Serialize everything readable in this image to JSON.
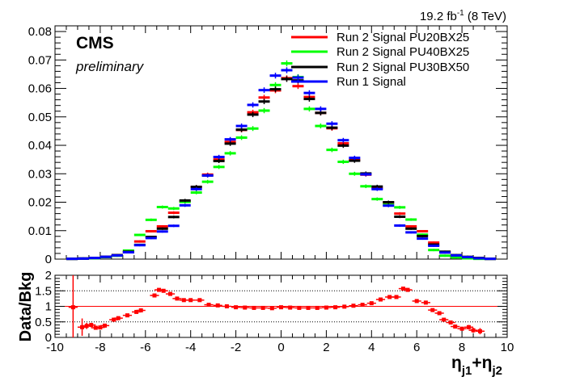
{
  "lumi_label_main": "19.2 fb",
  "lumi_label_sup": "-1",
  "lumi_label_suffix": " (8 TeV)",
  "cms_label": "CMS",
  "preliminary_label": "preliminary",
  "colors": {
    "red": "#ff0000",
    "green": "#00ff00",
    "black": "#000000",
    "blue": "#0000ff"
  },
  "chart_data": [
    {
      "type": "histogram",
      "xlim": [
        -10,
        10
      ],
      "ylim": [
        0,
        0.082
      ],
      "x_ticks": [
        "-10",
        "-8",
        "-6",
        "-4",
        "-2",
        "0",
        "2",
        "4",
        "6",
        "8",
        "10"
      ],
      "y_ticks": [
        "0",
        "0.01",
        "0.02",
        "0.03",
        "0.04",
        "0.05",
        "0.06",
        "0.07",
        "0.08"
      ],
      "bins": [
        -9.25,
        -8.75,
        -8.25,
        -7.75,
        -7.25,
        -6.75,
        -6.25,
        -5.75,
        -5.25,
        -4.75,
        -4.25,
        -3.75,
        -3.25,
        -2.75,
        -2.25,
        -1.75,
        -1.25,
        -0.75,
        -0.25,
        0.25,
        0.75,
        1.25,
        1.75,
        2.25,
        2.75,
        3.25,
        3.75,
        4.25,
        4.75,
        5.25,
        5.75,
        6.25,
        6.75,
        7.25,
        7.75,
        8.25,
        8.75,
        9.25
      ],
      "legend": [
        "Run 2 Signal PU20BX25",
        "Run 2 Signal PU40BX25",
        "Run 2 Signal PU30BX50",
        "Run 1 Signal"
      ],
      "series": [
        {
          "name": "Run 2 Signal PU20BX25",
          "color": "red",
          "values": [
            0.0001,
            0.0002,
            0.0004,
            0.0008,
            0.0014,
            0.0025,
            0.0062,
            0.0098,
            0.0115,
            0.0163,
            0.0203,
            0.0254,
            0.0297,
            0.035,
            0.0412,
            0.0454,
            0.0516,
            0.0568,
            0.0593,
            0.0636,
            0.0608,
            0.057,
            0.0514,
            0.046,
            0.0407,
            0.0349,
            0.0297,
            0.0249,
            0.0199,
            0.016,
            0.0115,
            0.0098,
            0.0058,
            0.0024,
            0.0013,
            0.0007,
            0.0004,
            0.0001
          ]
        },
        {
          "name": "Run 2 Signal PU40BX25",
          "color": "green",
          "values": [
            0.0001,
            0.0002,
            0.0003,
            0.0007,
            0.0012,
            0.003,
            0.0085,
            0.0138,
            0.0183,
            0.0178,
            0.0201,
            0.0234,
            0.0272,
            0.0324,
            0.0372,
            0.0427,
            0.0459,
            0.0522,
            0.0612,
            0.0688,
            0.064,
            0.0528,
            0.0468,
            0.0384,
            0.0342,
            0.03,
            0.0256,
            0.0211,
            0.0191,
            0.0182,
            0.0139,
            0.0086,
            0.0032,
            0.0012,
            0.0006,
            0.0003,
            0.0001,
            0.0001
          ]
        },
        {
          "name": "Run 2 Signal PU30BX50",
          "color": "black",
          "values": [
            0.0001,
            0.0002,
            0.0004,
            0.0008,
            0.0014,
            0.0026,
            0.005,
            0.0078,
            0.0107,
            0.0148,
            0.0206,
            0.0254,
            0.0294,
            0.0345,
            0.0406,
            0.0455,
            0.0508,
            0.0554,
            0.0597,
            0.0633,
            0.0628,
            0.0563,
            0.0514,
            0.0462,
            0.0399,
            0.0346,
            0.0301,
            0.0255,
            0.02,
            0.0149,
            0.0107,
            0.0081,
            0.0051,
            0.0026,
            0.0014,
            0.0008,
            0.0004,
            0.0001
          ]
        },
        {
          "name": "Run 1 Signal",
          "color": "blue",
          "values": [
            0.0001,
            0.0002,
            0.0004,
            0.0008,
            0.0013,
            0.0024,
            0.0049,
            0.0074,
            0.0097,
            0.0117,
            0.0189,
            0.0246,
            0.0294,
            0.0359,
            0.0421,
            0.0468,
            0.0542,
            0.0594,
            0.0645,
            0.0664,
            0.0638,
            0.0584,
            0.0528,
            0.0476,
            0.0418,
            0.0356,
            0.0298,
            0.0246,
            0.0188,
            0.0118,
            0.0094,
            0.0072,
            0.0047,
            0.0023,
            0.0013,
            0.0007,
            0.0003,
            0.0001
          ]
        }
      ]
    },
    {
      "type": "ratio",
      "ylabel": "Data/Bkg",
      "xlabel_main": "η",
      "xlabel_sub1": "j1",
      "xlabel_plus": "+η",
      "xlabel_sub2": "j2",
      "xlim": [
        -10,
        10
      ],
      "ylim": [
        0,
        2
      ],
      "y_ticks": [
        "0",
        "0.5",
        "1",
        "1.5",
        "2"
      ],
      "x_ticks": [
        "-10",
        "-8",
        "-6",
        "-4",
        "-2",
        "0",
        "2",
        "4",
        "6",
        "8",
        "10"
      ],
      "reference_lines": [
        0.5,
        1,
        1.5
      ],
      "points": [
        {
          "x": -9.2,
          "y": 0.97,
          "err": 1.03
        },
        {
          "x": -8.8,
          "y": 0.33,
          "err": 0.28
        },
        {
          "x": -8.6,
          "y": 0.37,
          "err": 0.1
        },
        {
          "x": -8.4,
          "y": 0.4,
          "err": 0.07
        },
        {
          "x": -8.2,
          "y": 0.31,
          "err": 0.06
        },
        {
          "x": -8.0,
          "y": 0.32,
          "err": 0.05
        },
        {
          "x": -7.8,
          "y": 0.38,
          "err": 0.04
        },
        {
          "x": -7.4,
          "y": 0.57,
          "err": 0.03
        },
        {
          "x": -7.2,
          "y": 0.62,
          "err": 0.03
        },
        {
          "x": -6.8,
          "y": 0.71,
          "err": 0.02
        },
        {
          "x": -6.4,
          "y": 0.82,
          "err": 0.02
        },
        {
          "x": -6.2,
          "y": 0.87,
          "err": 0.02
        },
        {
          "x": -5.6,
          "y": 1.35,
          "err": 0.02
        },
        {
          "x": -5.4,
          "y": 1.53,
          "err": 0.02
        },
        {
          "x": -5.2,
          "y": 1.5,
          "err": 0.02
        },
        {
          "x": -4.9,
          "y": 1.4,
          "err": 0.02
        },
        {
          "x": -4.6,
          "y": 1.25,
          "err": 0.01
        },
        {
          "x": -4.3,
          "y": 1.2,
          "err": 0.01
        },
        {
          "x": -4.0,
          "y": 1.2,
          "err": 0.01
        },
        {
          "x": -3.6,
          "y": 1.2,
          "err": 0.01
        },
        {
          "x": -3.2,
          "y": 1.05,
          "err": 0.01
        },
        {
          "x": -2.8,
          "y": 1.03,
          "err": 0.01
        },
        {
          "x": -2.4,
          "y": 1.0,
          "err": 0.01
        },
        {
          "x": -2.0,
          "y": 0.97,
          "err": 0.01
        },
        {
          "x": -1.6,
          "y": 0.96,
          "err": 0.01
        },
        {
          "x": -1.2,
          "y": 0.95,
          "err": 0.01
        },
        {
          "x": -0.8,
          "y": 0.95,
          "err": 0.01
        },
        {
          "x": -0.4,
          "y": 0.94,
          "err": 0.01
        },
        {
          "x": 0.0,
          "y": 0.97,
          "err": 0.01
        },
        {
          "x": 0.4,
          "y": 0.96,
          "err": 0.01
        },
        {
          "x": 0.8,
          "y": 0.95,
          "err": 0.01
        },
        {
          "x": 1.2,
          "y": 0.95,
          "err": 0.01
        },
        {
          "x": 1.6,
          "y": 0.95,
          "err": 0.01
        },
        {
          "x": 2.0,
          "y": 0.96,
          "err": 0.01
        },
        {
          "x": 2.4,
          "y": 0.97,
          "err": 0.01
        },
        {
          "x": 2.8,
          "y": 0.99,
          "err": 0.01
        },
        {
          "x": 3.2,
          "y": 1.02,
          "err": 0.01
        },
        {
          "x": 3.6,
          "y": 1.05,
          "err": 0.01
        },
        {
          "x": 4.0,
          "y": 1.1,
          "err": 0.01
        },
        {
          "x": 4.4,
          "y": 1.22,
          "err": 0.01
        },
        {
          "x": 4.8,
          "y": 1.3,
          "err": 0.02
        },
        {
          "x": 5.1,
          "y": 1.3,
          "err": 0.02
        },
        {
          "x": 5.4,
          "y": 1.57,
          "err": 0.02
        },
        {
          "x": 5.6,
          "y": 1.53,
          "err": 0.02
        },
        {
          "x": 6.0,
          "y": 1.17,
          "err": 0.02
        },
        {
          "x": 6.4,
          "y": 1.12,
          "err": 0.02
        },
        {
          "x": 6.7,
          "y": 0.88,
          "err": 0.02
        },
        {
          "x": 7.0,
          "y": 0.78,
          "err": 0.03
        },
        {
          "x": 7.2,
          "y": 0.57,
          "err": 0.03
        },
        {
          "x": 7.5,
          "y": 0.48,
          "err": 0.04
        },
        {
          "x": 7.7,
          "y": 0.35,
          "err": 0.05
        },
        {
          "x": 8.0,
          "y": 0.28,
          "err": 0.06
        },
        {
          "x": 8.3,
          "y": 0.33,
          "err": 0.07
        },
        {
          "x": 8.5,
          "y": 0.23,
          "err": 0.08
        },
        {
          "x": 8.8,
          "y": 0.2,
          "err": 0.1
        }
      ]
    }
  ]
}
